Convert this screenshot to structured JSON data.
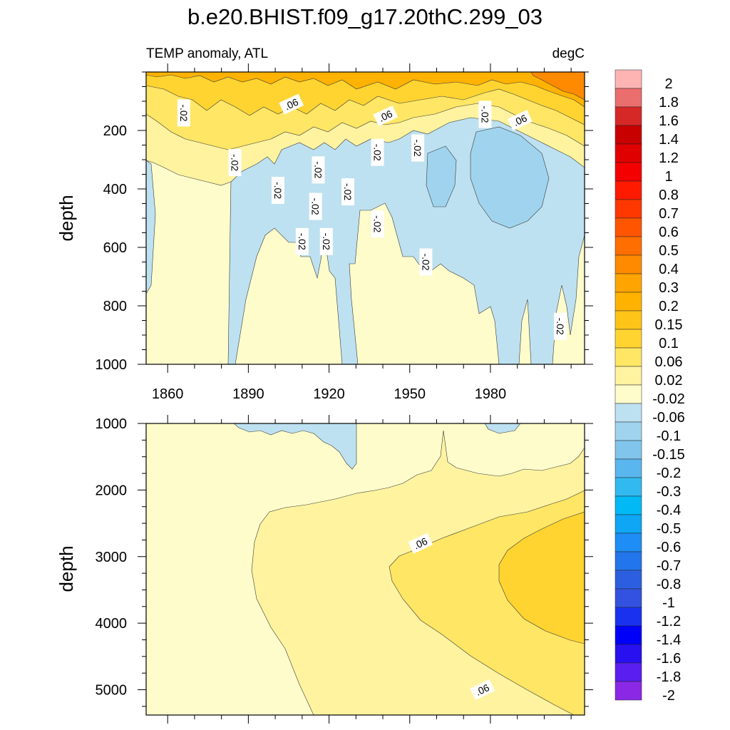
{
  "figure": {
    "title": "b.e20.BHIST.f09_g17.20thC.299_03",
    "left_subtitle": "TEMP anomaly, ATL",
    "right_subtitle": "degC"
  },
  "chart_data": [
    {
      "type": "heatmap",
      "panel": "upper",
      "ylabel": "depth",
      "xlabel": "",
      "xlim": [
        1852,
        2015
      ],
      "ylim": [
        1000,
        0
      ],
      "xticks": [
        1860,
        1890,
        1920,
        1950,
        1980
      ],
      "yticks": [
        200,
        400,
        600,
        800,
        1000
      ],
      "colormap_levels": [
        {
          "lo": -0.06,
          "hi": -0.02,
          "color": "#bde1f0"
        },
        {
          "lo": -0.02,
          "hi": 0.02,
          "color": "#fefccb"
        },
        {
          "lo": 0.02,
          "hi": 0.06,
          "color": "#fff3a0"
        },
        {
          "lo": 0.06,
          "hi": 0.1,
          "color": "#ffe664"
        },
        {
          "lo": 0.1,
          "hi": 0.15,
          "color": "#ffd430"
        },
        {
          "lo": 0.15,
          "hi": 0.2,
          "color": "#ffc418"
        },
        {
          "lo": 0.2,
          "hi": 0.3,
          "color": "#ffb200"
        }
      ],
      "contour_labels": [
        {
          "text": "-.02",
          "x": 1866,
          "y": 140
        },
        {
          "text": ".06",
          "x": 1906,
          "y": 110
        },
        {
          "text": "-.02",
          "x": 1885,
          "y": 310
        },
        {
          "text": "-.02",
          "x": 1901,
          "y": 405
        },
        {
          "text": "-.02",
          "x": 1916,
          "y": 335
        },
        {
          "text": "-.02",
          "x": 1915,
          "y": 460
        },
        {
          "text": "-.02",
          "x": 1927,
          "y": 410
        },
        {
          "text": "-.02",
          "x": 1910,
          "y": 580
        },
        {
          "text": "-.02",
          "x": 1919,
          "y": 580
        },
        {
          "text": ".06",
          "x": 1941,
          "y": 150
        },
        {
          "text": "-.02",
          "x": 1938,
          "y": 275
        },
        {
          "text": "-.02",
          "x": 1953,
          "y": 260
        },
        {
          "text": "-.02",
          "x": 1938,
          "y": 520
        },
        {
          "text": "-.02",
          "x": 1956,
          "y": 650
        },
        {
          "text": "-.02",
          "x": 1978,
          "y": 145
        },
        {
          "text": ".06",
          "x": 1991,
          "y": 165
        },
        {
          "text": "-.02",
          "x": 2006,
          "y": 870
        }
      ]
    },
    {
      "type": "heatmap",
      "panel": "lower",
      "ylabel": "depth",
      "xlabel": "",
      "xlim": [
        1852,
        2015
      ],
      "ylim": [
        5380,
        1000
      ],
      "xticks": [
        1860,
        1890,
        1920,
        1950,
        1980
      ],
      "yticks": [
        1000,
        2000,
        3000,
        4000,
        5000
      ],
      "colormap_levels": [
        {
          "lo": -0.06,
          "hi": -0.02,
          "color": "#bde1f0"
        },
        {
          "lo": -0.02,
          "hi": 0.02,
          "color": "#fefccb"
        },
        {
          "lo": 0.02,
          "hi": 0.06,
          "color": "#fff3a0"
        },
        {
          "lo": 0.06,
          "hi": 0.1,
          "color": "#ffe664"
        },
        {
          "lo": 0.1,
          "hi": 0.15,
          "color": "#ffd430"
        }
      ],
      "contour_labels": [
        {
          "text": ".06",
          "x": 1954,
          "y": 2800
        },
        {
          "text": ".06",
          "x": 1977,
          "y": 5000
        }
      ]
    }
  ],
  "colorbar": {
    "labels": [
      "2",
      "1.8",
      "1.6",
      "1.4",
      "1.2",
      "1",
      "0.8",
      "0.7",
      "0.6",
      "0.5",
      "0.4",
      "0.3",
      "0.2",
      "0.15",
      "0.1",
      "0.06",
      "0.02",
      "-0.02",
      "-0.06",
      "-0.1",
      "-0.15",
      "-0.2",
      "-0.3",
      "-0.4",
      "-0.5",
      "-0.6",
      "-0.7",
      "-0.8",
      "-1",
      "-1.2",
      "-1.4",
      "-1.6",
      "-1.8",
      "-2"
    ],
    "colors": [
      "#ffb4b4",
      "#eb6e6e",
      "#d72828",
      "#c80000",
      "#e10000",
      "#f50000",
      "#ff1a00",
      "#ff3800",
      "#ff5500",
      "#ff6e00",
      "#ff8a00",
      "#ffa400",
      "#ffb200",
      "#ffc418",
      "#ffd430",
      "#ffe664",
      "#fff3a0",
      "#fefccb",
      "#bde1f0",
      "#a0d4ee",
      "#82c5ec",
      "#5ab6ee",
      "#32baf0",
      "#00b9f5",
      "#0ea6f5",
      "#1e8df5",
      "#2275eb",
      "#2c5fe0",
      "#3452e0",
      "#1a32f0",
      "#0000fa",
      "#2810f0",
      "#5a1ef0",
      "#8a28e6"
    ]
  }
}
